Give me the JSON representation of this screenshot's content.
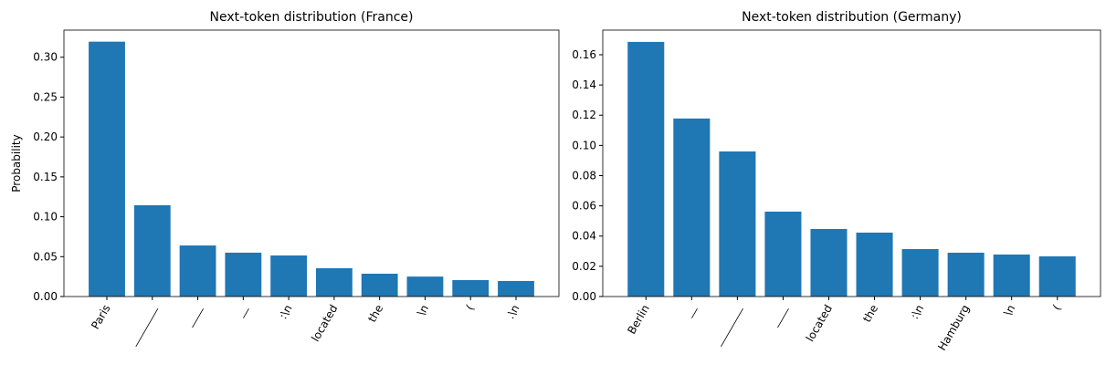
{
  "chart_data": [
    {
      "type": "bar",
      "title": "Next-token distribution (France)",
      "y_label": "Probability",
      "color": "#1f77b4",
      "categories": [
        "Paris",
        "________",
        "____",
        "__",
        ":\\n",
        "located",
        "the",
        "\\n",
        "(",
        ".\\n"
      ],
      "values": [
        0.3195,
        0.1145,
        0.064,
        0.055,
        0.0515,
        0.0355,
        0.0286,
        0.025,
        0.0206,
        0.0195
      ],
      "ylim": [
        0,
        0.334
      ],
      "yticks": [
        {
          "value": 0,
          "label": "0.00"
        },
        {
          "value": 0.05,
          "label": "0.05"
        },
        {
          "value": 0.1,
          "label": "0.10"
        },
        {
          "value": 0.15,
          "label": "0.15"
        },
        {
          "value": 0.2,
          "label": "0.20"
        },
        {
          "value": 0.25,
          "label": "0.25"
        },
        {
          "value": 0.3,
          "label": "0.30"
        }
      ]
    },
    {
      "type": "bar",
      "title": "Next-token distribution (Germany)",
      "color": "#1f77b4",
      "categories": [
        "Berlin",
        "__",
        "________",
        "____",
        "located",
        "the",
        ":\\n",
        "Hamburg",
        "\\n",
        "("
      ],
      "values": [
        0.1685,
        0.1178,
        0.096,
        0.0562,
        0.0447,
        0.0423,
        0.0314,
        0.029,
        0.0278,
        0.0266
      ],
      "ylim": [
        0,
        0.1763
      ],
      "yticks": [
        {
          "value": 0,
          "label": "0.00"
        },
        {
          "value": 0.02,
          "label": "0.02"
        },
        {
          "value": 0.04,
          "label": "0.04"
        },
        {
          "value": 0.06,
          "label": "0.06"
        },
        {
          "value": 0.08,
          "label": "0.08"
        },
        {
          "value": 0.1,
          "label": "0.10"
        },
        {
          "value": 0.12,
          "label": "0.12"
        },
        {
          "value": 0.14,
          "label": "0.14"
        },
        {
          "value": 0.16,
          "label": "0.16"
        }
      ]
    }
  ]
}
